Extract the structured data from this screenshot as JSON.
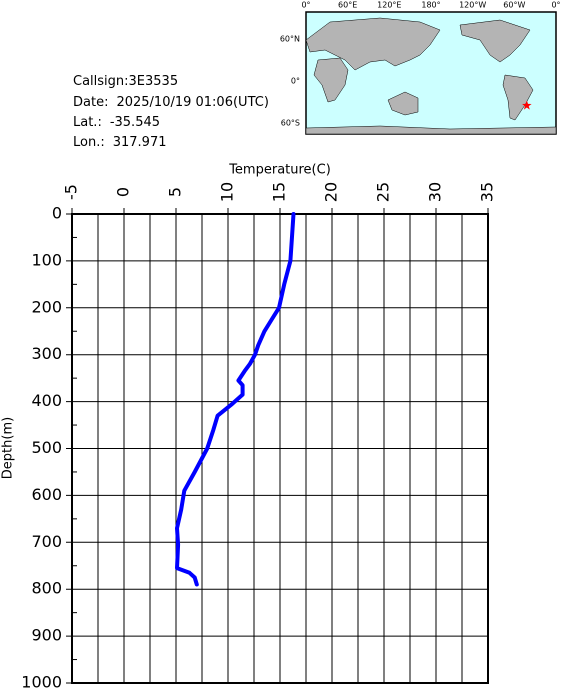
{
  "info": {
    "callsign_label": "Callsign:",
    "callsign": "3E3535",
    "date_label": "Date:",
    "date": "2025/10/19 01:06(UTC)",
    "lat_label": "Lat.:",
    "lat": -35.545,
    "lon_label": "Lon.:",
    "lon": 317.971
  },
  "map": {
    "top_labels": [
      "0°",
      "60°E",
      "120°E",
      "180°",
      "120°W",
      "60°W",
      "0°"
    ],
    "left_labels": [
      "60°N",
      "0°",
      "60°S"
    ],
    "marker_color": "#ff0000"
  },
  "chart_data": {
    "type": "line",
    "x_label": "Temperature(C)",
    "y_label": "Depth(m)",
    "depth": [
      0,
      100,
      150,
      200,
      225,
      250,
      280,
      300,
      320,
      335,
      355,
      365,
      385,
      405,
      430,
      460,
      500,
      550,
      590,
      630,
      670,
      705,
      755,
      765,
      775,
      790
    ],
    "values": [
      16.3,
      16.0,
      15.4,
      14.9,
      14.2,
      13.5,
      12.9,
      12.6,
      12.1,
      11.6,
      11.0,
      11.4,
      11.4,
      10.4,
      9.0,
      8.6,
      8.0,
      6.8,
      5.8,
      5.5,
      5.1,
      5.2,
      5.1,
      6.3,
      6.8,
      7.0
    ],
    "color": "#0000ff",
    "xlim": [
      -5,
      35
    ],
    "xticks": [
      -5,
      0,
      5,
      10,
      15,
      20,
      25,
      30,
      35
    ],
    "xgrid": [
      -2.5,
      2.5,
      7.5,
      12.5,
      17.5,
      22.5,
      27.5,
      32.5
    ],
    "ylim": [
      0,
      1000
    ],
    "yticks": [
      0,
      100,
      200,
      300,
      400,
      500,
      600,
      700,
      800,
      900,
      1000
    ],
    "ygrid": [
      50,
      150,
      250,
      350,
      450,
      550,
      650,
      750,
      850,
      950
    ],
    "grid": true
  }
}
